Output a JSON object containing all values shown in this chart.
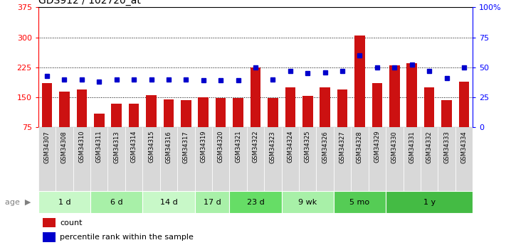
{
  "title": "GDS912 / 102720_at",
  "samples": [
    "GSM34307",
    "GSM34308",
    "GSM34310",
    "GSM34311",
    "GSM34313",
    "GSM34314",
    "GSM34315",
    "GSM34316",
    "GSM34317",
    "GSM34319",
    "GSM34320",
    "GSM34321",
    "GSM34322",
    "GSM34323",
    "GSM34324",
    "GSM34325",
    "GSM34326",
    "GSM34327",
    "GSM34328",
    "GSM34329",
    "GSM34330",
    "GSM34331",
    "GSM34332",
    "GSM34333",
    "GSM34334"
  ],
  "counts": [
    185,
    165,
    170,
    110,
    135,
    135,
    155,
    145,
    143,
    150,
    148,
    148,
    225,
    148,
    175,
    153,
    175,
    170,
    305,
    185,
    230,
    235,
    175,
    143,
    190
  ],
  "percentiles": [
    43,
    40,
    40,
    38,
    40,
    40,
    40,
    40,
    40,
    39,
    39,
    39,
    50,
    40,
    47,
    45,
    46,
    47,
    60,
    50,
    50,
    52,
    47,
    41,
    50
  ],
  "age_groups": [
    {
      "label": "1 d",
      "start": 0,
      "end": 3,
      "color": "#c8f8c8"
    },
    {
      "label": "6 d",
      "start": 3,
      "end": 6,
      "color": "#a8f0a8"
    },
    {
      "label": "14 d",
      "start": 6,
      "end": 9,
      "color": "#c8f8c8"
    },
    {
      "label": "17 d",
      "start": 9,
      "end": 11,
      "color": "#a8f0a8"
    },
    {
      "label": "23 d",
      "start": 11,
      "end": 14,
      "color": "#66dd66"
    },
    {
      "label": "9 wk",
      "start": 14,
      "end": 17,
      "color": "#a8f0a8"
    },
    {
      "label": "5 mo",
      "start": 17,
      "end": 20,
      "color": "#55cc55"
    },
    {
      "label": "1 y",
      "start": 20,
      "end": 25,
      "color": "#44bb44"
    }
  ],
  "ylim_left": [
    75,
    375
  ],
  "ylim_right": [
    0,
    100
  ],
  "yticks_left": [
    75,
    150,
    225,
    300,
    375
  ],
  "yticks_right": [
    0,
    25,
    50,
    75,
    100
  ],
  "bar_color": "#cc1111",
  "dot_color": "#0000cc",
  "bg_color": "#ffffff"
}
